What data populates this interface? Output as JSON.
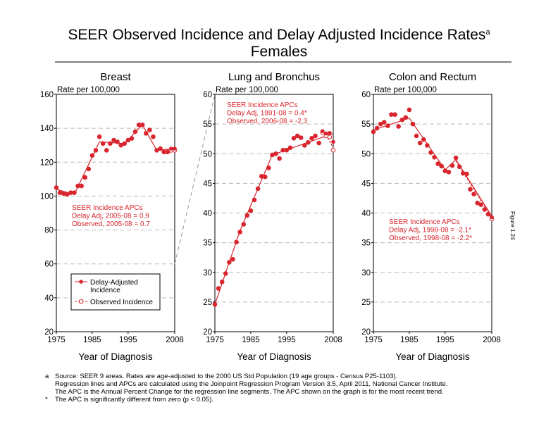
{
  "title_line1": "SEER Observed Incidence and Delay Adjusted Incidence Rates",
  "title_sup": "a",
  "title_line2": "Females",
  "figure_label": "Figure 1.24",
  "footnotes": [
    {
      "mark": "a",
      "text": "Source: SEER 9 areas. Rates are age-adjusted to the 2000 US Std Population (19 age groups - Census P25-1103)."
    },
    {
      "mark": "",
      "text": "Regression lines and APCs are calculated using the Joinpoint Regression Program Version 3.5, April 2011, National Cancer Institute."
    },
    {
      "mark": "",
      "text": "The APC is the Annual Percent Change for the regression line segments. The APC shown on the graph is for the most recent trend."
    },
    {
      "mark": "*",
      "text": "The APC is significantly different from zero (p < 0.05)."
    }
  ],
  "legend": {
    "delay": "Delay-Adjusted Incidence",
    "observed": "Observed Incidence"
  },
  "colors": {
    "series": "#d9262e",
    "grid": "#bbbbbb"
  },
  "chart_data": [
    {
      "type": "line",
      "title": "Breast",
      "ylabel": "Rate per 100,000",
      "xlabel": "Year of Diagnosis",
      "xlim": [
        1975,
        2008
      ],
      "xticks": [
        1975,
        1985,
        1995,
        2008
      ],
      "ylim": [
        20,
        160
      ],
      "yticks": [
        20,
        40,
        60,
        80,
        100,
        120,
        140,
        160
      ],
      "annotation": [
        "SEER Incidence APCs",
        "Delay Adj, 2005-08 = 0.9",
        "Observed, 2005-08 = 0.7"
      ],
      "series": [
        {
          "name": "Delay-Adjusted Incidence",
          "values": [
            105,
            102,
            101.5,
            101,
            102,
            102,
            106,
            106,
            111,
            116,
            124,
            127,
            135,
            131,
            127,
            131,
            133,
            132,
            130,
            131,
            133,
            134,
            138,
            142,
            142,
            137,
            139,
            135,
            127,
            128,
            126,
            126,
            128,
            128
          ]
        },
        {
          "name": "Observed Incidence",
          "values": [
            105,
            102,
            101.5,
            101,
            102,
            102,
            106,
            106,
            111,
            116,
            124,
            127,
            135,
            131,
            127,
            131,
            133,
            132,
            130,
            131,
            133,
            134,
            138,
            142,
            142,
            137,
            139,
            135,
            127,
            128,
            126,
            126,
            127,
            127
          ]
        }
      ],
      "trend_delay": [
        [
          1975,
          104
        ],
        [
          1980,
          101
        ],
        [
          1987,
          132
        ],
        [
          1994,
          131
        ],
        [
          1999,
          142
        ],
        [
          2003,
          127
        ],
        [
          2008,
          128
        ]
      ],
      "trend_observed": [
        [
          2005,
          126
        ],
        [
          2008,
          127
        ]
      ]
    },
    {
      "type": "line",
      "title": "Lung and Bronchus",
      "ylabel": "Rate per 100,000",
      "xlabel": "Year of Diagnosis",
      "xlim": [
        1975,
        2008
      ],
      "xticks": [
        1975,
        1985,
        1995,
        2008
      ],
      "ylim": [
        20,
        60
      ],
      "yticks": [
        20,
        25,
        30,
        35,
        40,
        45,
        50,
        55,
        60
      ],
      "annotation": [
        "SEER Incidence APCs",
        "Delay Adj, 1991-08 = 0.4*",
        "Observed, 2006-08 = -2.3"
      ],
      "series": [
        {
          "name": "Delay-Adjusted Incidence",
          "values": [
            24.6,
            27.3,
            28.4,
            29.8,
            31.7,
            32.2,
            35.1,
            36.8,
            38.1,
            39.6,
            40.4,
            42.2,
            44.1,
            46.2,
            46.1,
            47.6,
            49.8,
            50.0,
            49.2,
            50.6,
            50.6,
            51.0,
            52.6,
            53.0,
            52.7,
            51.4,
            51.9,
            52.6,
            53.0,
            51.8,
            53.8,
            53.4,
            53.5,
            52.0
          ]
        },
        {
          "name": "Observed Incidence",
          "values": [
            24.6,
            27.3,
            28.4,
            29.8,
            31.7,
            32.2,
            35.1,
            36.8,
            38.1,
            39.6,
            40.4,
            42.2,
            44.1,
            46.2,
            46.1,
            47.6,
            49.8,
            50.0,
            49.2,
            50.6,
            50.6,
            51.0,
            52.6,
            53.0,
            52.7,
            51.4,
            51.9,
            52.6,
            53.0,
            51.8,
            53.6,
            53.0,
            52.8,
            50.6
          ]
        }
      ],
      "trend_delay": [
        [
          1975,
          24.6
        ],
        [
          1982,
          37
        ],
        [
          1991,
          49.8
        ],
        [
          2008,
          53.4
        ]
      ],
      "trend_observed": [
        [
          2006,
          53.2
        ],
        [
          2008,
          51
        ]
      ]
    },
    {
      "type": "line",
      "title": "Colon and Rectum",
      "ylabel": "Rate per 100,000",
      "xlabel": "Year of Diagnosis",
      "xlim": [
        1975,
        2008
      ],
      "xticks": [
        1975,
        1985,
        1995,
        2008
      ],
      "ylim": [
        20,
        60
      ],
      "yticks": [
        20,
        25,
        30,
        35,
        40,
        45,
        50,
        55,
        60
      ],
      "annotation": [
        "SEER Incidence APCs",
        "Delay Adj, 1998-08 = -2.1*",
        "Observed, 1998-08 = -2.2*"
      ],
      "series": [
        {
          "name": "Delay-Adjusted Incidence",
          "values": [
            53.7,
            54.3,
            55.0,
            55.3,
            54.7,
            56.6,
            56.6,
            54.6,
            55.7,
            56.1,
            57.4,
            55.0,
            53.0,
            51.8,
            52.4,
            51.4,
            50.2,
            49.4,
            48.3,
            47.9,
            47.1,
            46.9,
            48.0,
            49.3,
            47.8,
            46.7,
            46.6,
            44.0,
            43.2,
            41.7,
            41.4,
            40.6,
            39.8,
            39.3
          ]
        },
        {
          "name": "Observed Incidence",
          "values": [
            53.7,
            54.3,
            55.0,
            55.3,
            54.7,
            56.6,
            56.6,
            54.6,
            55.7,
            56.1,
            57.4,
            55.0,
            53.0,
            51.8,
            52.4,
            51.4,
            50.2,
            49.4,
            48.3,
            47.9,
            47.1,
            46.9,
            48.0,
            49.3,
            47.8,
            46.7,
            46.6,
            44.0,
            43.2,
            41.7,
            41.4,
            40.6,
            39.8,
            39.0
          ]
        }
      ],
      "trend_delay": [
        [
          1975,
          54
        ],
        [
          1985,
          56
        ],
        [
          1995,
          47.3
        ],
        [
          1998,
          49
        ],
        [
          2008,
          39.5
        ]
      ],
      "trend_observed": [
        [
          1998,
          48.8
        ],
        [
          2008,
          39.2
        ]
      ]
    }
  ]
}
